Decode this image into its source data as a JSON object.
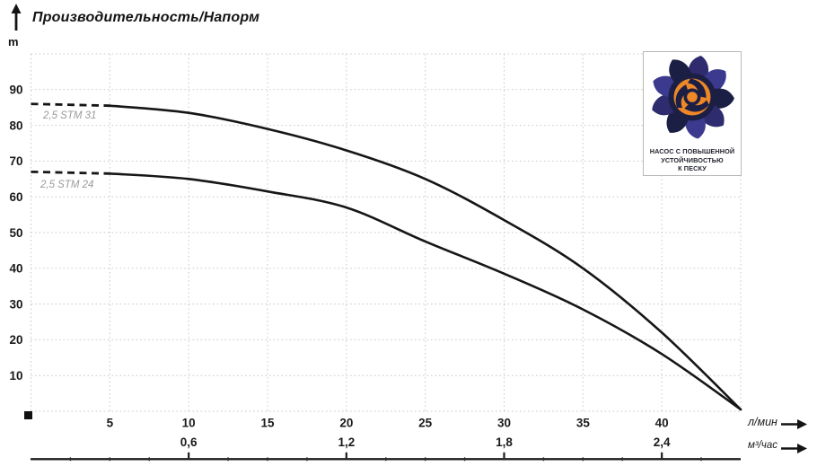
{
  "header": {
    "title": "Производительность/Напорм",
    "y_unit": "m"
  },
  "curve_labels": {
    "stm31": "2,5 STM 31",
    "stm24": "2,5 STM 24"
  },
  "axes_units": {
    "flow_lmin": "л/мин",
    "flow_m3h": "м³/час"
  },
  "badge": {
    "line1": "НАСОС С ПОВЫШЕННОЙ",
    "line2": "УСТОЙЧИВОСТЬЮ",
    "line3": "К ПЕСКУ",
    "colors": {
      "navy": "#2e2c6e",
      "navy_dark": "#1c1f44",
      "navy_light": "#3b3a8e",
      "orange": "#ee8827"
    }
  },
  "chart_data": {
    "type": "line",
    "title": "Производительность/Напорм",
    "ylabel": "m",
    "ylim": [
      0,
      100
    ],
    "xlim_lmin": [
      0,
      45
    ],
    "grid": true,
    "grid_color": "#c9c9c9",
    "curve_color": "#161616",
    "y_ticks": [
      10,
      20,
      30,
      40,
      50,
      60,
      70,
      80,
      90
    ],
    "x_ticks_lmin": [
      5,
      10,
      15,
      20,
      25,
      30,
      35,
      40
    ],
    "x_ticks_m3h": [
      {
        "label": "0,6",
        "flow_lmin": 10
      },
      {
        "label": "1,2",
        "flow_lmin": 20
      },
      {
        "label": "1,8",
        "flow_lmin": 30
      },
      {
        "label": "2,4",
        "flow_lmin": 40
      }
    ],
    "x": [
      0,
      5,
      10,
      15,
      20,
      25,
      30,
      35,
      40,
      45
    ],
    "dashed_until_lmin": 5,
    "series": [
      {
        "name": "2,5 STM 31",
        "values": [
          86,
          85.5,
          83.5,
          79,
          73,
          65,
          53.5,
          40,
          22,
          0.5
        ]
      },
      {
        "name": "2,5 STM 24",
        "values": [
          67,
          66.5,
          65,
          61.5,
          57,
          47.5,
          38.5,
          28.5,
          16,
          0.5
        ]
      }
    ]
  }
}
